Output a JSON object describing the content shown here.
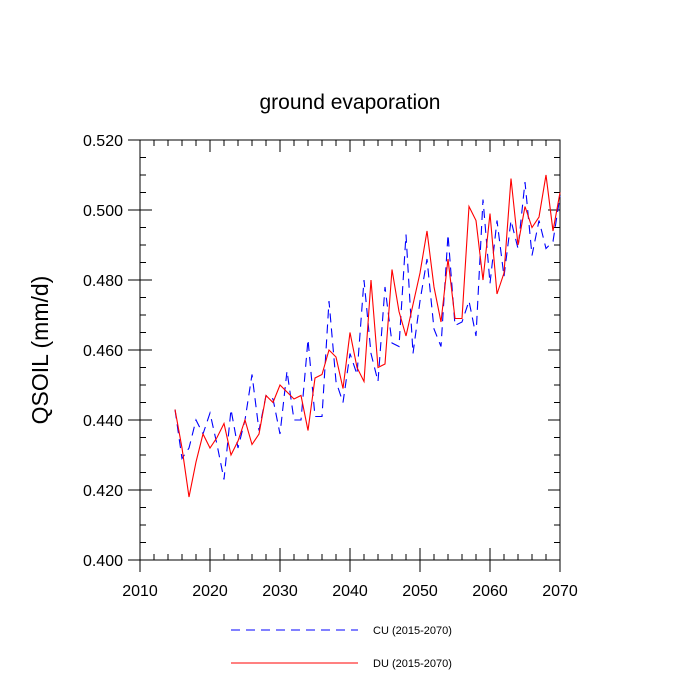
{
  "chart_data": {
    "type": "line",
    "title": "ground evaporation",
    "xlabel": "",
    "ylabel": "QSOIL  (mm/d)",
    "xlim": [
      2010,
      2070
    ],
    "ylim": [
      0.4,
      0.52
    ],
    "x_ticks": [
      "2010",
      "2020",
      "2030",
      "2040",
      "2050",
      "2060",
      "2070"
    ],
    "y_ticks": [
      "0.400",
      "0.420",
      "0.440",
      "0.460",
      "0.480",
      "0.500",
      "0.520"
    ],
    "grid": false,
    "legend_position": "bottom",
    "x": [
      2015,
      2016,
      2017,
      2018,
      2019,
      2020,
      2021,
      2022,
      2023,
      2024,
      2025,
      2026,
      2027,
      2028,
      2029,
      2030,
      2031,
      2032,
      2033,
      2034,
      2035,
      2036,
      2037,
      2038,
      2039,
      2040,
      2041,
      2042,
      2043,
      2044,
      2045,
      2046,
      2047,
      2048,
      2049,
      2050,
      2051,
      2052,
      2053,
      2054,
      2055,
      2056,
      2057,
      2058,
      2059,
      2060,
      2061,
      2062,
      2063,
      2064,
      2065,
      2066,
      2067,
      2068,
      2069,
      2070
    ],
    "series": [
      {
        "name": "CU (2015-2070)",
        "color": "#0000ff",
        "style": "dashed",
        "values": [
          0.443,
          0.429,
          0.432,
          0.44,
          0.436,
          0.442,
          0.433,
          0.423,
          0.443,
          0.432,
          0.44,
          0.453,
          0.437,
          0.447,
          0.446,
          0.436,
          0.454,
          0.44,
          0.44,
          0.463,
          0.441,
          0.441,
          0.474,
          0.451,
          0.445,
          0.459,
          0.453,
          0.48,
          0.459,
          0.451,
          0.478,
          0.462,
          0.461,
          0.493,
          0.459,
          0.474,
          0.486,
          0.466,
          0.461,
          0.493,
          0.467,
          0.468,
          0.474,
          0.464,
          0.503,
          0.479,
          0.497,
          0.481,
          0.497,
          0.489,
          0.508,
          0.487,
          0.497,
          0.489,
          0.491,
          0.504
        ]
      },
      {
        "name": "DU (2015-2070)",
        "color": "#ff0000",
        "style": "solid",
        "values": [
          0.443,
          0.432,
          0.418,
          0.428,
          0.436,
          0.432,
          0.435,
          0.439,
          0.43,
          0.434,
          0.44,
          0.433,
          0.436,
          0.447,
          0.445,
          0.45,
          0.448,
          0.446,
          0.447,
          0.437,
          0.452,
          0.453,
          0.46,
          0.458,
          0.449,
          0.465,
          0.455,
          0.451,
          0.48,
          0.455,
          0.456,
          0.483,
          0.471,
          0.464,
          0.473,
          0.482,
          0.494,
          0.478,
          0.468,
          0.486,
          0.469,
          0.469,
          0.501,
          0.497,
          0.48,
          0.499,
          0.476,
          0.482,
          0.509,
          0.49,
          0.501,
          0.495,
          0.498,
          0.51,
          0.494,
          0.505
        ]
      }
    ]
  }
}
